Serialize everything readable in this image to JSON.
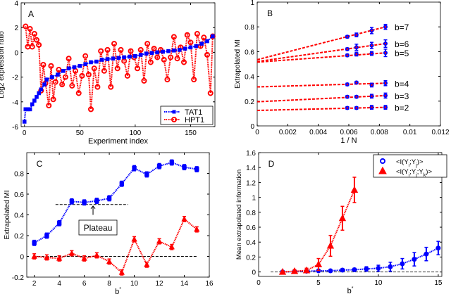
{
  "chart_data": [
    {
      "panel": "A",
      "type": "line",
      "xlabel": "Experiment index",
      "ylabel": "Log2 expression ratio",
      "xlim": [
        -3,
        172
      ],
      "ylim": [
        -6,
        4
      ],
      "xticks": [
        0,
        50,
        100,
        150
      ],
      "yticks": [
        -6,
        -4,
        -2,
        0,
        2,
        4
      ],
      "legend": "bottom-right",
      "series": [
        {
          "name": "TAT1",
          "color": "#0000ff",
          "marker": "square",
          "x": [
            0,
            1,
            3,
            5,
            7,
            9,
            11,
            13,
            15,
            18,
            20,
            25,
            30,
            35,
            40,
            45,
            50,
            55,
            60,
            65,
            70,
            75,
            80,
            85,
            90,
            95,
            100,
            105,
            110,
            115,
            120,
            125,
            130,
            135,
            140,
            145,
            150,
            155,
            160,
            165,
            170
          ],
          "y": [
            -5.6,
            -4.6,
            -4.6,
            -4.6,
            -4.2,
            -3.9,
            -3.6,
            -3.3,
            -3.0,
            -2.6,
            -2.2,
            -2.0,
            -1.8,
            -1.5,
            -1.3,
            -1.2,
            -1.1,
            -0.95,
            -0.8,
            -0.75,
            -0.6,
            -0.55,
            -0.5,
            -0.45,
            -0.4,
            -0.35,
            -0.3,
            -0.2,
            -0.1,
            -0.05,
            0,
            0.05,
            0.1,
            0.15,
            0.2,
            0.3,
            0.4,
            0.5,
            0.7,
            0.9,
            1.3
          ]
        },
        {
          "name": "HPT1",
          "color": "#ff0000",
          "marker": "circle",
          "x": [
            1,
            3,
            5,
            7,
            9,
            11,
            13,
            15,
            17,
            19,
            22,
            24,
            26,
            28,
            31,
            34,
            37,
            40,
            43,
            46,
            49,
            52,
            55,
            58,
            60,
            63,
            66,
            69,
            72,
            75,
            78,
            81,
            84,
            87,
            90,
            93,
            96,
            99,
            102,
            105,
            108,
            111,
            114,
            117,
            120,
            123,
            126,
            129,
            132,
            135,
            138,
            141,
            144,
            147,
            150,
            153,
            156,
            159,
            162,
            165,
            168,
            170
          ],
          "y": [
            2.1,
            0.45,
            1.9,
            0.45,
            1.5,
            1.0,
            0.6,
            -3.1,
            -1.0,
            -2.5,
            -4.3,
            -1.1,
            -3.8,
            -2.4,
            -1.4,
            -2.6,
            -2.0,
            -0.5,
            -2.7,
            -1.5,
            -3.3,
            -1.9,
            -0.3,
            -1.8,
            -4.6,
            -1.3,
            -2.8,
            0.1,
            -1.5,
            0.2,
            -2.8,
            0.7,
            -1.3,
            0.2,
            -0.7,
            -1.9,
            0.1,
            -0.4,
            -1.3,
            0.2,
            -2.3,
            0.7,
            -0.8,
            0.3,
            -0.4,
            0.2,
            -0.6,
            -2.2,
            -0.4,
            1.25,
            -0.5,
            0.4,
            -0.8,
            1.4,
            0.8,
            -2.2,
            1.5,
            0.5,
            1.2,
            -0.2,
            -3.3,
            1.3
          ]
        }
      ]
    },
    {
      "panel": "B",
      "type": "line",
      "xlabel": "1 / N",
      "ylabel": "Extrapolated MI",
      "xlim": [
        0,
        0.012
      ],
      "ylim": [
        0,
        1
      ],
      "xticks": [
        0,
        0.002,
        0.004,
        0.006,
        0.008,
        0.01,
        0.012
      ],
      "yticks": [
        0,
        0.2,
        0.4,
        0.6,
        0.8,
        1
      ],
      "x": [
        0.0059,
        0.0065,
        0.0075,
        0.0084
      ],
      "series": [
        {
          "name": "b=7",
          "intercept": 0.535,
          "y": [
            0.72,
            0.735,
            0.77,
            0.8
          ],
          "err": [
            0.01,
            0.015,
            0.025,
            0.02
          ]
        },
        {
          "name": "b=6",
          "intercept": 0.52,
          "y": [
            0.62,
            0.635,
            0.65,
            0.665
          ],
          "err": [
            0.01,
            0.025,
            0.025,
            0.03
          ]
        },
        {
          "name": "b=5",
          "intercept": 0.515,
          "y": [
            0.57,
            0.58,
            0.585,
            0.59
          ],
          "err": [
            0.01,
            0.015,
            0.015,
            0.03
          ]
        },
        {
          "name": "b=4",
          "intercept": 0.315,
          "y": [
            0.335,
            0.35,
            0.33,
            0.345
          ],
          "err": [
            0.01,
            0.01,
            0.015,
            0.02
          ]
        },
        {
          "name": "b=3",
          "intercept": 0.195,
          "y": [
            0.235,
            0.235,
            0.24,
            0.245
          ],
          "err": [
            0.01,
            0.01,
            0.015,
            0.02
          ]
        },
        {
          "name": "b=2",
          "intercept": 0.125,
          "y": [
            0.145,
            0.145,
            0.15,
            0.15
          ],
          "err": [
            0.01,
            0.01,
            0.015,
            0.015
          ]
        }
      ],
      "line_color": "#ff0000",
      "marker_color": "#0000ff"
    },
    {
      "panel": "C",
      "type": "line",
      "xlabel": "b*",
      "ylabel": "Extrapolated MI",
      "xlim": [
        1.4,
        16
      ],
      "ylim": [
        -0.2,
        1.0
      ],
      "xticks": [
        2,
        4,
        6,
        8,
        10,
        12,
        14,
        16
      ],
      "yticks": [
        -0.2,
        0,
        0.2,
        0.4,
        0.6,
        0.8
      ],
      "x": [
        2,
        3,
        4,
        5,
        6,
        7,
        8,
        9,
        10,
        11,
        12,
        13,
        14,
        15
      ],
      "series": [
        {
          "color": "#0000ff",
          "marker": "square",
          "y": [
            0.13,
            0.2,
            0.32,
            0.53,
            0.52,
            0.535,
            0.56,
            0.7,
            0.85,
            0.79,
            0.87,
            0.905,
            0.86,
            0.84
          ]
        },
        {
          "color": "#ff0000",
          "marker": "triangle",
          "y": [
            0,
            -0.01,
            -0.02,
            0.03,
            -0.02,
            0.01,
            -0.05,
            -0.155,
            0.165,
            -0.08,
            0.145,
            0.09,
            0.36,
            0.26
          ]
        }
      ],
      "plateau_level": 0.5,
      "annotation": "Plateau"
    },
    {
      "panel": "D",
      "type": "line",
      "xlabel": "b*",
      "ylabel": "Mean extrapolated information",
      "xlim": [
        0,
        15.3
      ],
      "ylim": [
        -0.06,
        1.6
      ],
      "xticks": [
        0,
        5,
        10,
        15
      ],
      "yticks": [
        0,
        0.2,
        0.4,
        0.6,
        0.8,
        1,
        1.2,
        1.4,
        1.6
      ],
      "legend": "top-right",
      "series": [
        {
          "name": "<I(Y_i;Y_j)>",
          "color": "#0000ff",
          "marker": "circle",
          "x": [
            2,
            3,
            4,
            5,
            6,
            7,
            8,
            9,
            10,
            11,
            12,
            13,
            14,
            15
          ],
          "y": [
            0,
            0.005,
            0.01,
            0.015,
            0.015,
            0.025,
            0.03,
            0.04,
            0.05,
            0.07,
            0.11,
            0.17,
            0.24,
            0.32
          ],
          "err": [
            0.01,
            0.01,
            0.01,
            0.01,
            0.01,
            0.02,
            0.02,
            0.03,
            0.04,
            0.06,
            0.07,
            0.09,
            0.09,
            0.09
          ]
        },
        {
          "name": "<I(Y_i;Y_j;Y_k)>",
          "color": "#ff0000",
          "marker": "triangle",
          "x": [
            2,
            3,
            4,
            5,
            6,
            7,
            8
          ],
          "y": [
            0,
            0.01,
            0.02,
            0.1,
            0.35,
            0.72,
            1.1
          ],
          "err": [
            0.01,
            0.02,
            0.03,
            0.08,
            0.14,
            0.16,
            0.17
          ]
        }
      ]
    }
  ],
  "panels": {
    "A": "A",
    "B": "B",
    "C": "C",
    "D": "D"
  }
}
